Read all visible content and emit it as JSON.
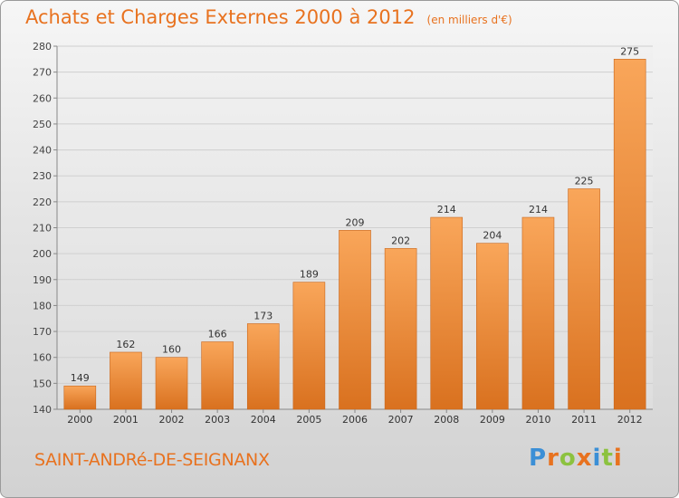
{
  "header": {
    "title": "Achats et Charges Externes 2000 à 2012",
    "unit": "(en milliers d'€)"
  },
  "footer": {
    "commune": "SAINT-ANDRé-DE-SEIGNANX"
  },
  "logo": {
    "text": "Proxiti",
    "letters": [
      {
        "ch": "P",
        "color": "#3b8fd6"
      },
      {
        "ch": "r",
        "color": "#e8721f"
      },
      {
        "ch": "o",
        "color": "#8cc23f"
      },
      {
        "ch": "x",
        "color": "#e8721f"
      },
      {
        "ch": "i",
        "color": "#3b8fd6"
      },
      {
        "ch": "t",
        "color": "#8cc23f"
      },
      {
        "ch": "i",
        "color": "#e8721f"
      }
    ]
  },
  "colors": {
    "accent": "#e8721f",
    "bar_top": "#f9a65a",
    "bar_bottom": "#d9711f"
  },
  "chart_data": {
    "type": "bar",
    "title": "Achats et Charges Externes 2000 à 2012",
    "subtitle": "(en milliers d'€)",
    "categories": [
      "2000",
      "2001",
      "2002",
      "2003",
      "2004",
      "2005",
      "2006",
      "2007",
      "2008",
      "2009",
      "2010",
      "2011",
      "2012"
    ],
    "values": [
      149,
      162,
      160,
      166,
      173,
      189,
      209,
      202,
      214,
      204,
      214,
      225,
      275
    ],
    "ylim": [
      140,
      280
    ],
    "yticks": [
      140,
      150,
      160,
      170,
      180,
      190,
      200,
      210,
      220,
      230,
      240,
      250,
      260,
      270,
      280
    ],
    "grid": true,
    "legend": "none"
  }
}
